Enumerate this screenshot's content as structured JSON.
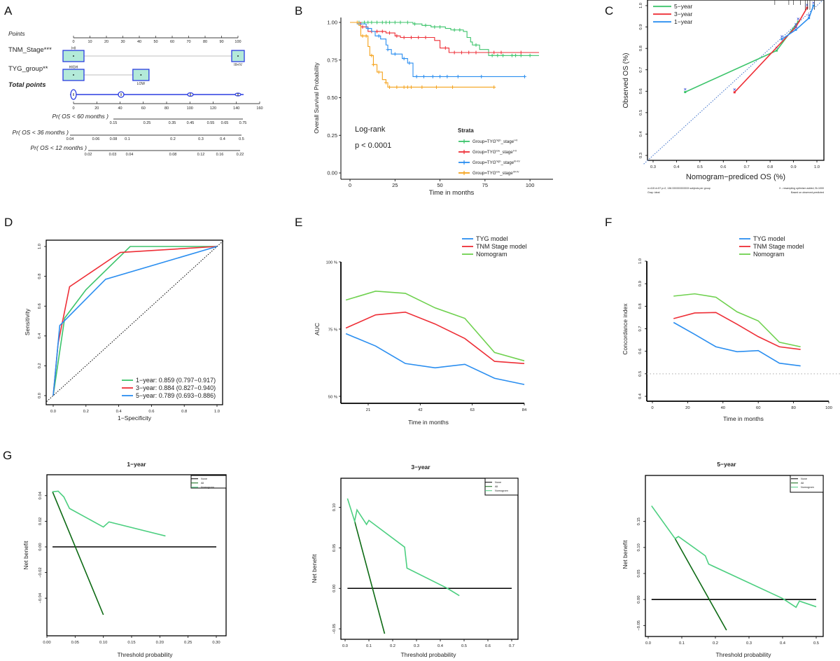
{
  "panel_labels": [
    "A",
    "B",
    "C",
    "D",
    "E",
    "F",
    "G"
  ],
  "nomogram": {
    "points_label": "Points",
    "points_ticks": [
      "0",
      "10",
      "20",
      "30",
      "40",
      "50",
      "60",
      "70",
      "80",
      "90",
      "100"
    ],
    "variables": [
      {
        "label": "TNM_Stage***",
        "levels": [
          {
            "name": "I+II",
            "points": 0
          },
          {
            "name": "III+IV",
            "points": 100
          }
        ]
      },
      {
        "label": "TYG_group**",
        "levels": [
          {
            "name": "HIGH",
            "points": 0
          },
          {
            "name": "LOW",
            "points": 41
          }
        ]
      }
    ],
    "total_points_label": "Total points",
    "total_ticks": [
      "0",
      "20",
      "40",
      "60",
      "80",
      "100",
      "120",
      "140",
      "160"
    ],
    "prob_axes": [
      {
        "label": "Pr( OS < 60 months )",
        "ticks": [
          "0.15",
          "0.25",
          "0.35",
          "0.45",
          "0.55",
          "0.65",
          "0.75"
        ]
      },
      {
        "label": "Pr( OS < 36 months )",
        "ticks": [
          "0.04",
          "0.06",
          "0.08",
          "0.1",
          "0.2",
          "0.3",
          "0.4",
          "0.5"
        ]
      },
      {
        "label": "Pr( OS < 12 months )",
        "ticks": [
          "0.02",
          "0.03",
          "0.04",
          "0.08",
          "0.12",
          "0.16",
          "0.22"
        ]
      }
    ],
    "colors": {
      "box_fill": "#b3ead9",
      "box_edge": "#2b3de0",
      "total": "#2b3de0"
    }
  },
  "chart_data": [
    {
      "id": "B",
      "type": "line",
      "step": true,
      "xlabel": "Time in months",
      "ylabel": "Overall Survival Probability",
      "xlim": [
        0,
        105
      ],
      "ylim": [
        0,
        1
      ],
      "xtick_labels": [
        "0",
        "25",
        "50",
        "75",
        "100"
      ],
      "ytick_labels": [
        "0.00",
        "0.25",
        "0.50",
        "0.75",
        "1.00"
      ],
      "annotations": [
        "Log-rank",
        "p < 0.0001"
      ],
      "legend_title": "Strata",
      "series": [
        {
          "name_parts": {
            "base": "Group=TYG",
            "sup1": "high",
            "mid": "_stage",
            "sup2": "I+II"
          },
          "color": "#3cc46b",
          "points": [
            [
              0,
              1
            ],
            [
              30,
              1
            ],
            [
              35,
              0.99
            ],
            [
              40,
              0.98
            ],
            [
              45,
              0.97
            ],
            [
              53,
              0.96
            ],
            [
              56,
              0.95
            ],
            [
              63,
              0.94
            ],
            [
              65,
              0.9
            ],
            [
              67,
              0.87
            ],
            [
              68,
              0.85
            ],
            [
              72,
              0.82
            ],
            [
              77,
              0.78
            ],
            [
              105,
              0.78
            ]
          ],
          "censor": [
            5,
            8,
            10,
            12,
            15,
            18,
            20,
            22,
            25,
            28,
            32,
            36,
            42,
            47,
            50,
            58,
            61,
            70,
            79,
            82,
            85,
            90,
            92,
            95,
            100
          ]
        },
        {
          "name_parts": {
            "base": "Group=TYG",
            "sup1": "low",
            "mid": "_stage",
            "sup2": "I+II"
          },
          "color": "#ee2e36",
          "points": [
            [
              0,
              1
            ],
            [
              6,
              0.97
            ],
            [
              10,
              0.94
            ],
            [
              20,
              0.93
            ],
            [
              25,
              0.91
            ],
            [
              28,
              0.9
            ],
            [
              45,
              0.9
            ],
            [
              47,
              0.88
            ],
            [
              50,
              0.83
            ],
            [
              55,
              0.8
            ],
            [
              105,
              0.8
            ]
          ],
          "censor": [
            7,
            12,
            15,
            18,
            22,
            26,
            30,
            34,
            38,
            42,
            53,
            58,
            62,
            66,
            70,
            80,
            84,
            95
          ]
        },
        {
          "name_parts": {
            "base": "Group=TYG",
            "sup1": "high",
            "mid": "_stage",
            "sup2": "III+IV"
          },
          "color": "#2a8ef0",
          "points": [
            [
              0,
              1
            ],
            [
              4,
              0.99
            ],
            [
              9,
              0.96
            ],
            [
              12,
              0.94
            ],
            [
              14,
              0.91
            ],
            [
              17,
              0.89
            ],
            [
              20,
              0.85
            ],
            [
              21,
              0.82
            ],
            [
              23,
              0.79
            ],
            [
              29,
              0.76
            ],
            [
              32,
              0.73
            ],
            [
              35,
              0.64
            ],
            [
              97,
              0.64
            ]
          ],
          "censor": [
            5,
            10,
            16,
            21,
            25,
            30,
            33,
            37,
            41,
            46,
            50,
            54,
            60,
            73,
            97
          ]
        },
        {
          "name_parts": {
            "base": "Group=TYG",
            "sup1": "low",
            "mid": "_stage",
            "sup2": "III+IV"
          },
          "color": "#f5a21b",
          "points": [
            [
              0,
              1
            ],
            [
              5,
              0.98
            ],
            [
              6,
              0.91
            ],
            [
              10,
              0.84
            ],
            [
              11,
              0.78
            ],
            [
              13,
              0.72
            ],
            [
              15,
              0.67
            ],
            [
              18,
              0.62
            ],
            [
              20,
              0.6
            ],
            [
              21,
              0.57
            ],
            [
              80,
              0.57
            ]
          ],
          "censor": [
            4,
            7,
            9,
            12,
            13,
            16,
            20,
            22,
            26,
            30,
            32,
            34,
            40,
            48,
            57,
            80
          ]
        }
      ]
    },
    {
      "id": "C",
      "type": "line",
      "xlabel": "Nomogram−prediced OS (%)",
      "ylabel": "Observed OS (%)",
      "xlim": [
        0.3,
        1.0
      ],
      "ylim": [
        0.3,
        1.0
      ],
      "xtick_labels": [
        "0.3",
        "0.4",
        "0.5",
        "0.6",
        "0.7",
        "0.8",
        "0.9",
        "1.0"
      ],
      "ytick_labels": [
        "0.3",
        "0.4",
        "0.5",
        "0.6",
        "0.7",
        "0.8",
        "0.9",
        "1.0"
      ],
      "reference_line": {
        "type": "diagonal",
        "color": "#3b6fc9"
      },
      "notes": [
        "n=415 d=57 p=2, 138.333333333333 subjects per group",
        "Gray: ideal",
        "X - resampling optimism added, B=1000",
        "Based on observed-predicted"
      ],
      "series": [
        {
          "name": "5−year",
          "color": "#3cc46b",
          "points": [
            [
              0.437,
              0.596
            ],
            [
              0.828,
              0.79
            ],
            [
              0.92,
              0.925
            ]
          ]
        },
        {
          "name": "3−year",
          "color": "#ee2e36",
          "points": [
            [
              0.648,
              0.595
            ],
            [
              0.91,
              0.9
            ],
            [
              0.958,
              0.99
            ]
          ]
        },
        {
          "name": "1−year",
          "color": "#2a8ef0",
          "points": [
            [
              0.85,
              0.843
            ],
            [
              0.91,
              0.887
            ],
            [
              0.966,
              0.942
            ],
            [
              0.985,
              1.0
            ]
          ]
        }
      ]
    },
    {
      "id": "D",
      "type": "line",
      "xlabel": "1−Specificity",
      "ylabel": "Sensitivity",
      "xlim": [
        0,
        1
      ],
      "ylim": [
        0,
        1
      ],
      "xtick_labels": [
        "0.0",
        "0.2",
        "0.4",
        "0.6",
        "0.8",
        "1.0"
      ],
      "ytick_labels": [
        "0.0",
        "0.2",
        "0.4",
        "0.6",
        "0.8",
        "1.0"
      ],
      "reference_line": {
        "type": "diagonal",
        "color": "#000000"
      },
      "series": [
        {
          "name": "1−year: 0.859 (0.797−0.917)",
          "color": "#3cc46b",
          "points": [
            [
              0,
              0
            ],
            [
              0.07,
              0.52
            ],
            [
              0.2,
              0.71
            ],
            [
              0.47,
              1
            ],
            [
              1,
              1
            ]
          ]
        },
        {
          "name": "3−year: 0.884 (0.827−0.940)",
          "color": "#ee2e36",
          "points": [
            [
              0,
              0
            ],
            [
              0.03,
              0.35
            ],
            [
              0.1,
              0.73
            ],
            [
              0.41,
              0.96
            ],
            [
              1,
              1
            ]
          ]
        },
        {
          "name": "5−year: 0.789 (0.693−0.886)",
          "color": "#2a8ef0",
          "points": [
            [
              0,
              0
            ],
            [
              0.04,
              0.47
            ],
            [
              0.32,
              0.78
            ],
            [
              1,
              1
            ]
          ]
        }
      ]
    },
    {
      "id": "E",
      "type": "line",
      "xlabel": "Time in months",
      "ylabel": "AUC",
      "xlim": [
        21,
        84
      ],
      "ylim": [
        50,
        100
      ],
      "xtick_labels": [
        "21",
        "42",
        "63",
        "84"
      ],
      "ytick_labels": [
        "50 %",
        "75 %",
        "100 %"
      ],
      "series": [
        {
          "name": "TYG model",
          "color": "#2a8ef0",
          "x": [
            12,
            24,
            36,
            48,
            60,
            72,
            84
          ],
          "y": [
            73.3,
            68.7,
            62.2,
            60.6,
            61.9,
            56.7,
            54.4
          ]
        },
        {
          "name": "TNM Stage model",
          "color": "#ee2e36",
          "x": [
            12,
            24,
            36,
            48,
            60,
            72,
            84
          ],
          "y": [
            75.4,
            80.3,
            81.3,
            76.9,
            71.5,
            63.0,
            62.2
          ]
        },
        {
          "name": "Nomogram",
          "color": "#6fd14f",
          "x": [
            12,
            24,
            36,
            48,
            60,
            72,
            84
          ],
          "y": [
            85.8,
            89.1,
            88.3,
            82.9,
            79.0,
            66.3,
            63.2
          ]
        }
      ]
    },
    {
      "id": "F",
      "type": "line",
      "xlabel": "Time in months",
      "ylabel": "Concordance index",
      "xlim": [
        0,
        100
      ],
      "ylim": [
        0.4,
        1.0
      ],
      "xtick_labels": [
        "0",
        "20",
        "40",
        "60",
        "80",
        "100"
      ],
      "ytick_labels": [
        "0.4",
        "0.5",
        "0.6",
        "0.7",
        "0.8",
        "0.9",
        "1.0"
      ],
      "reference_line": {
        "type": "horizontal",
        "y": 0.5,
        "color": "#aaaaaa"
      },
      "series": [
        {
          "name": "TYG model",
          "color": "#2a8ef0",
          "x": [
            12,
            24,
            36,
            48,
            60,
            72,
            84
          ],
          "y": [
            0.728,
            0.675,
            0.62,
            0.598,
            0.603,
            0.547,
            0.535
          ]
        },
        {
          "name": "TNM Stage model",
          "color": "#ee2e36",
          "x": [
            12,
            24,
            36,
            48,
            60,
            72,
            84
          ],
          "y": [
            0.745,
            0.77,
            0.772,
            0.72,
            0.665,
            0.62,
            0.608
          ]
        },
        {
          "name": "Nomogram",
          "color": "#6fd14f",
          "x": [
            12,
            24,
            36,
            48,
            60,
            72,
            84
          ],
          "y": [
            0.845,
            0.855,
            0.84,
            0.775,
            0.735,
            0.64,
            0.62
          ]
        }
      ]
    },
    {
      "id": "G1",
      "type": "line",
      "title": "1−year",
      "xlabel": "Threshold probability",
      "ylabel": "Net benefit",
      "xlim": [
        0,
        0.3
      ],
      "ylim": [
        -0.053,
        0.047
      ],
      "xtick_labels": [
        "0.00",
        "0.05",
        "0.10",
        "0.15",
        "0.20",
        "0.25",
        "0.30"
      ],
      "ytick_labels": [
        "−0.04",
        "−0.02",
        "0.00",
        "0.02",
        "0.04"
      ],
      "series": [
        {
          "name": "None",
          "color": "#000000",
          "points": [
            [
              0.01,
              0
            ],
            [
              0.3,
              0
            ]
          ]
        },
        {
          "name": "All",
          "color": "#0d6a14",
          "points": [
            [
              0.01,
              0.043
            ],
            [
              0.1,
              -0.053
            ]
          ]
        },
        {
          "name": "Nomogram",
          "color": "#4ccf80",
          "points": [
            [
              0.01,
              0.043
            ],
            [
              0.02,
              0.0435
            ],
            [
              0.03,
              0.039
            ],
            [
              0.04,
              0.03
            ],
            [
              0.1,
              0.0155
            ],
            [
              0.11,
              0.0195
            ],
            [
              0.21,
              0.0085
            ]
          ]
        }
      ]
    },
    {
      "id": "G2",
      "type": "line",
      "title": "3−year",
      "xlabel": "Threshold probability",
      "ylabel": "Net benefit",
      "xlim": [
        0,
        0.7
      ],
      "ylim": [
        -0.056,
        0.117
      ],
      "xtick_labels": [
        "0.0",
        "0.1",
        "0.2",
        "0.3",
        "0.4",
        "0.5",
        "0.6",
        "0.7"
      ],
      "ytick_labels": [
        "−0.05",
        "0.00",
        "0.05",
        "0.10"
      ],
      "series": [
        {
          "name": "None",
          "color": "#000000",
          "points": [
            [
              0.01,
              0
            ],
            [
              0.7,
              0
            ]
          ]
        },
        {
          "name": "All",
          "color": "#0d6a14",
          "points": [
            [
              0.04,
              0.083
            ],
            [
              0.166,
              -0.056
            ]
          ]
        },
        {
          "name": "Nomogram",
          "color": "#4ccf80",
          "points": [
            [
              0.01,
              0.111
            ],
            [
              0.04,
              0.083
            ],
            [
              0.05,
              0.097
            ],
            [
              0.09,
              0.079
            ],
            [
              0.1,
              0.084
            ],
            [
              0.25,
              0.051
            ],
            [
              0.26,
              0.025
            ],
            [
              0.43,
              0
            ],
            [
              0.48,
              -0.009
            ]
          ]
        }
      ]
    },
    {
      "id": "G3",
      "type": "line",
      "title": "5−year",
      "xlabel": "Threshold probability",
      "ylabel": "Net benefit",
      "xlim": [
        0,
        0.5
      ],
      "ylim": [
        -0.059,
        0.19
      ],
      "xtick_labels": [
        "0.0",
        "0.1",
        "0.2",
        "0.3",
        "0.4",
        "0.5"
      ],
      "ytick_labels": [
        "−0.05",
        "0.00",
        "0.05",
        "0.10",
        "0.15"
      ],
      "series": [
        {
          "name": "None",
          "color": "#000000",
          "points": [
            [
              0.01,
              0
            ],
            [
              0.5,
              0
            ]
          ]
        },
        {
          "name": "All",
          "color": "#0d6a14",
          "points": [
            [
              0.08,
              0.117
            ],
            [
              0.233,
              -0.059
            ]
          ]
        },
        {
          "name": "Nomogram",
          "color": "#4ccf80",
          "points": [
            [
              0.01,
              0.18
            ],
            [
              0.08,
              0.117
            ],
            [
              0.09,
              0.121
            ],
            [
              0.17,
              0.084
            ],
            [
              0.18,
              0.068
            ],
            [
              0.4,
              0.002
            ],
            [
              0.44,
              -0.015
            ],
            [
              0.45,
              -0.003
            ],
            [
              0.5,
              -0.014
            ]
          ]
        }
      ]
    }
  ]
}
